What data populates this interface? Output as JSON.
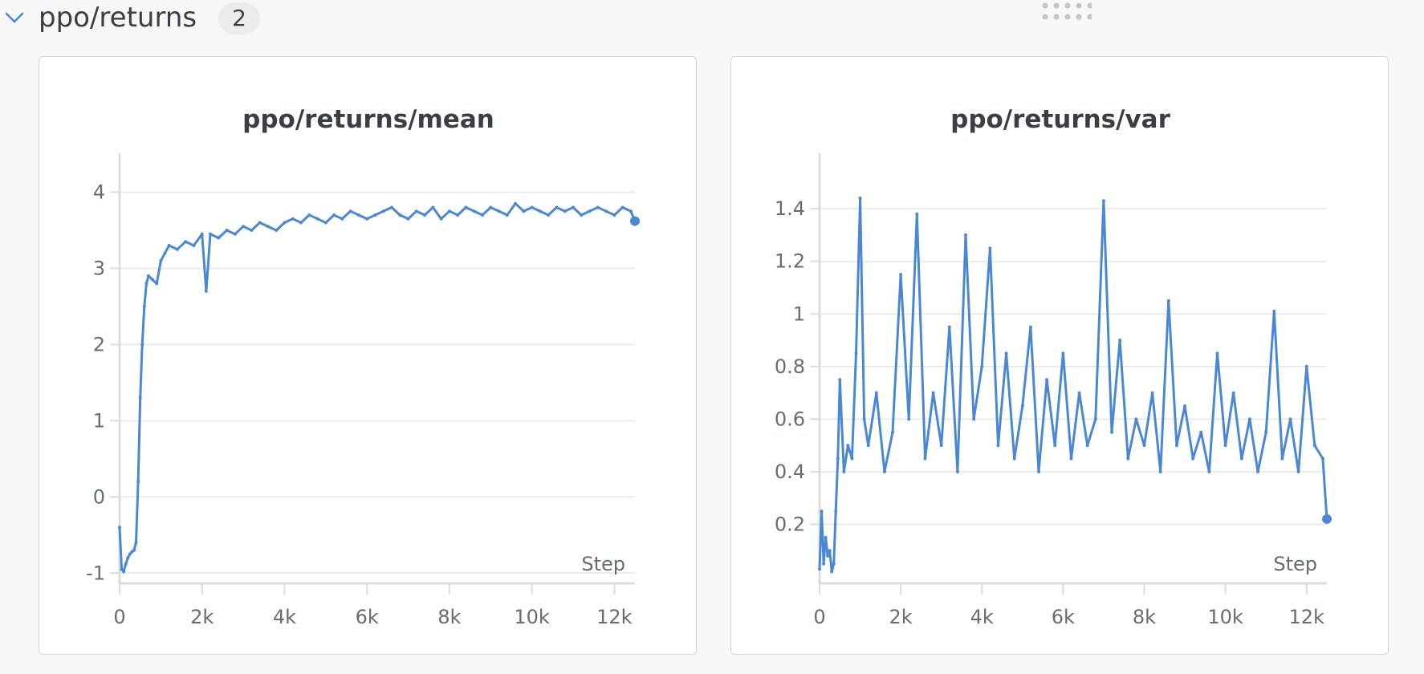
{
  "section": {
    "title": "ppo/returns",
    "count": "2",
    "chevron_icon": "chevron-down-icon",
    "drag_icon": "drag-handle-icon"
  },
  "colors": {
    "line": "#4a88d6",
    "grid": "#e6e6e6",
    "axis": "#dcdcdc",
    "text": "#666b78"
  },
  "chart_data": [
    {
      "type": "line",
      "title": "ppo/returns/mean",
      "xlabel": "Step",
      "ylabel": "",
      "xlim": [
        0,
        12500
      ],
      "ylim": [
        -1.05,
        4.3
      ],
      "xticks": [
        0,
        2000,
        4000,
        6000,
        8000,
        10000,
        12000
      ],
      "xtick_labels": [
        "0",
        "2k",
        "4k",
        "6k",
        "8k",
        "10k",
        "12k"
      ],
      "yticks": [
        -1,
        0,
        1,
        2,
        3,
        4
      ],
      "ytick_labels": [
        "-1",
        "0",
        "1",
        "2",
        "3",
        "4"
      ],
      "grid": true,
      "series": [
        {
          "x": [
            0,
            50,
            100,
            150,
            200,
            250,
            300,
            350,
            400,
            450,
            500,
            550,
            600,
            650,
            700,
            800,
            900,
            1000,
            1100,
            1200,
            1400,
            1600,
            1800,
            2000,
            2100,
            2200,
            2400,
            2600,
            2800,
            3000,
            3200,
            3400,
            3600,
            3800,
            4000,
            4200,
            4400,
            4600,
            4800,
            5000,
            5200,
            5400,
            5600,
            5800,
            6000,
            6200,
            6400,
            6600,
            6800,
            7000,
            7200,
            7400,
            7600,
            7800,
            8000,
            8200,
            8400,
            8600,
            8800,
            9000,
            9200,
            9400,
            9600,
            9800,
            10000,
            10200,
            10400,
            10600,
            10800,
            11000,
            11200,
            11400,
            11600,
            11800,
            12000,
            12200,
            12400,
            12500
          ],
          "y": [
            -0.4,
            -0.95,
            -0.98,
            -0.88,
            -0.8,
            -0.75,
            -0.72,
            -0.7,
            -0.6,
            0.2,
            1.3,
            2.0,
            2.5,
            2.8,
            2.9,
            2.85,
            2.8,
            3.1,
            3.2,
            3.3,
            3.25,
            3.35,
            3.3,
            3.45,
            2.7,
            3.45,
            3.4,
            3.5,
            3.45,
            3.55,
            3.5,
            3.6,
            3.55,
            3.5,
            3.6,
            3.65,
            3.6,
            3.7,
            3.65,
            3.6,
            3.7,
            3.65,
            3.75,
            3.7,
            3.65,
            3.7,
            3.75,
            3.8,
            3.7,
            3.65,
            3.75,
            3.7,
            3.8,
            3.65,
            3.75,
            3.7,
            3.8,
            3.75,
            3.7,
            3.8,
            3.75,
            3.7,
            3.85,
            3.75,
            3.8,
            3.75,
            3.7,
            3.8,
            3.75,
            3.8,
            3.7,
            3.75,
            3.8,
            3.75,
            3.7,
            3.8,
            3.75,
            3.62
          ]
        }
      ]
    },
    {
      "type": "line",
      "title": "ppo/returns/var",
      "xlabel": "Step",
      "ylabel": "",
      "xlim": [
        0,
        12500
      ],
      "ylim": [
        0,
        1.55
      ],
      "xticks": [
        0,
        2000,
        4000,
        6000,
        8000,
        10000,
        12000
      ],
      "xtick_labels": [
        "0",
        "2k",
        "4k",
        "6k",
        "8k",
        "10k",
        "12k"
      ],
      "yticks": [
        0.2,
        0.4,
        0.6,
        0.8,
        1.0,
        1.2,
        1.4
      ],
      "ytick_labels": [
        "0.2",
        "0.4",
        "0.6",
        "0.8",
        "1",
        "1.2",
        "1.4"
      ],
      "grid": true,
      "series": [
        {
          "x": [
            0,
            50,
            100,
            150,
            200,
            250,
            300,
            350,
            400,
            450,
            500,
            600,
            700,
            800,
            900,
            1000,
            1100,
            1200,
            1400,
            1600,
            1800,
            2000,
            2200,
            2400,
            2600,
            2800,
            3000,
            3200,
            3400,
            3600,
            3800,
            4000,
            4200,
            4400,
            4600,
            4800,
            5000,
            5200,
            5400,
            5600,
            5800,
            6000,
            6200,
            6400,
            6600,
            6800,
            7000,
            7200,
            7400,
            7600,
            7800,
            8000,
            8200,
            8400,
            8600,
            8800,
            9000,
            9200,
            9400,
            9600,
            9800,
            10000,
            10200,
            10400,
            10600,
            10800,
            11000,
            11200,
            11400,
            11600,
            11800,
            12000,
            12200,
            12400,
            12500
          ],
          "y": [
            0.03,
            0.25,
            0.05,
            0.15,
            0.08,
            0.1,
            0.02,
            0.05,
            0.25,
            0.45,
            0.75,
            0.4,
            0.5,
            0.45,
            0.85,
            1.44,
            0.6,
            0.5,
            0.7,
            0.4,
            0.55,
            1.15,
            0.6,
            1.38,
            0.45,
            0.7,
            0.5,
            0.95,
            0.4,
            1.3,
            0.6,
            0.8,
            1.25,
            0.5,
            0.85,
            0.45,
            0.65,
            0.95,
            0.4,
            0.75,
            0.5,
            0.85,
            0.45,
            0.7,
            0.5,
            0.6,
            1.43,
            0.55,
            0.9,
            0.45,
            0.6,
            0.5,
            0.7,
            0.4,
            1.05,
            0.5,
            0.65,
            0.45,
            0.55,
            0.4,
            0.85,
            0.5,
            0.7,
            0.45,
            0.6,
            0.4,
            0.55,
            1.01,
            0.45,
            0.6,
            0.4,
            0.8,
            0.5,
            0.45,
            0.22
          ]
        }
      ]
    }
  ]
}
